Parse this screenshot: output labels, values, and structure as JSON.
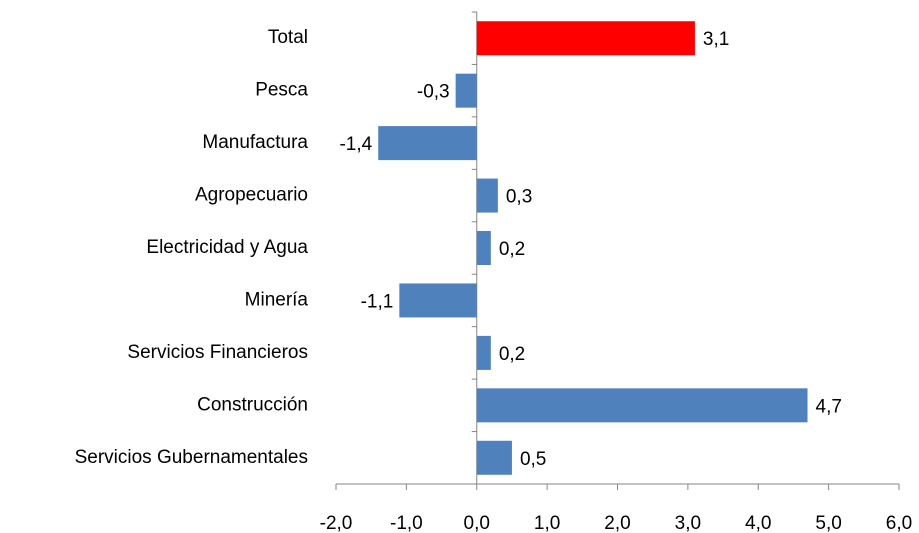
{
  "chart_data": {
    "type": "hbar",
    "categories": [
      "Total",
      "Pesca",
      "Manufactura",
      "Agropecuario",
      "Electricidad y Agua",
      "Minería",
      "Servicios Financieros",
      "Construcción",
      "Servicios Gubernamentales"
    ],
    "values": [
      3.1,
      -0.3,
      -1.4,
      0.3,
      0.2,
      -1.1,
      0.2,
      4.7,
      0.5
    ],
    "value_labels": [
      "3,1",
      "-0,3",
      "-1,4",
      "0,3",
      "0,2",
      "-1,1",
      "0,2",
      "4,7",
      "0,5"
    ],
    "colors": [
      "#ff0000",
      "#4f81bd",
      "#4f81bd",
      "#4f81bd",
      "#4f81bd",
      "#4f81bd",
      "#4f81bd",
      "#4f81bd",
      "#4f81bd"
    ],
    "xlim": [
      -2,
      6
    ],
    "xticks": [
      {
        "value": -2,
        "label": "-2,0"
      },
      {
        "value": -1,
        "label": "-1,0"
      },
      {
        "value": 0,
        "label": "0,0"
      },
      {
        "value": 1,
        "label": "1,0"
      },
      {
        "value": 2,
        "label": "2,0"
      },
      {
        "value": 3,
        "label": "3,0"
      },
      {
        "value": 4,
        "label": "4,0"
      },
      {
        "value": 5,
        "label": "5,0"
      },
      {
        "value": 6,
        "label": "6,0"
      }
    ]
  }
}
